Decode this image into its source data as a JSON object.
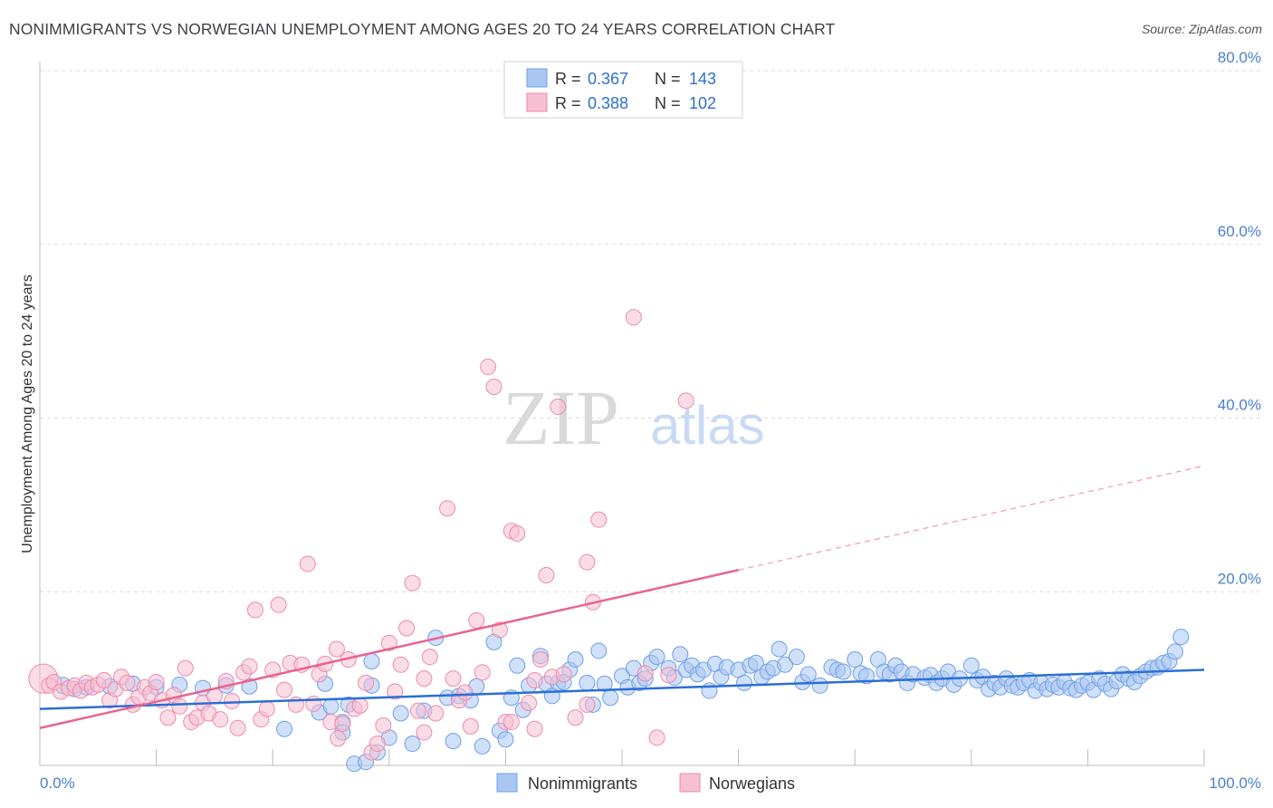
{
  "title": "NONIMMIGRANTS VS NORWEGIAN UNEMPLOYMENT AMONG AGES 20 TO 24 YEARS CORRELATION CHART",
  "source": "Source: ZipAtlas.com",
  "watermark": {
    "zip": "ZIP",
    "atlas": "atlas"
  },
  "legend_stats": [
    {
      "r_label": "R =",
      "r_value": "0.367",
      "n_label": "N =",
      "n_value": "143"
    },
    {
      "r_label": "R =",
      "r_value": "0.388",
      "n_label": "N =",
      "n_value": "102"
    }
  ],
  "chart_data": {
    "type": "scatter",
    "title": "NONIMMIGRANTS VS NORWEGIAN UNEMPLOYMENT AMONG AGES 20 TO 24 YEARS CORRELATION CHART",
    "xlabel": "",
    "ylabel": "Unemployment Among Ages 20 to 24 years",
    "xlim": [
      0,
      100
    ],
    "ylim": [
      0,
      80
    ],
    "x_tick_labels": [
      "0.0%",
      "100.0%"
    ],
    "y_tick_values": [
      20,
      40,
      60,
      80
    ],
    "y_tick_labels": [
      "20.0%",
      "40.0%",
      "60.0%",
      "80.0%"
    ],
    "grid": true,
    "legend_position": "bottom",
    "series": [
      {
        "name": "Nonimmigrants",
        "color": "#6fa0e8",
        "fill": "#a9c6f2",
        "r": 0.367,
        "n": 143,
        "trend": {
          "x0": 0,
          "y0": 6.5,
          "x1": 100,
          "y1": 11.0
        },
        "points": [
          [
            2,
            9.2
          ],
          [
            3,
            8.8
          ],
          [
            4,
            9.0
          ],
          [
            6,
            9.1
          ],
          [
            8,
            9.4
          ],
          [
            10,
            9.0
          ],
          [
            12,
            9.3
          ],
          [
            14,
            8.9
          ],
          [
            16,
            9.2
          ],
          [
            18,
            9.1
          ],
          [
            21,
            4.2
          ],
          [
            24,
            6.1
          ],
          [
            24.5,
            9.4
          ],
          [
            25,
            6.8
          ],
          [
            26,
            5.0
          ],
          [
            26,
            3.8
          ],
          [
            27,
            0.2
          ],
          [
            28,
            0.4
          ],
          [
            28.5,
            12.0
          ],
          [
            28.5,
            9.2
          ],
          [
            29,
            1.5
          ],
          [
            30,
            3.2
          ],
          [
            31,
            6.0
          ],
          [
            32,
            2.5
          ],
          [
            33,
            6.3
          ],
          [
            34,
            14.7
          ],
          [
            35,
            7.8
          ],
          [
            35.5,
            2.8
          ],
          [
            36,
            8.0
          ],
          [
            37,
            7.5
          ],
          [
            37.5,
            9.1
          ],
          [
            38,
            2.2
          ],
          [
            39,
            14.2
          ],
          [
            39.5,
            4.0
          ],
          [
            40,
            3.0
          ],
          [
            40.5,
            7.8
          ],
          [
            41,
            11.5
          ],
          [
            41.5,
            6.4
          ],
          [
            42,
            9.2
          ],
          [
            43,
            12.6
          ],
          [
            43.5,
            9.4
          ],
          [
            44,
            8.0
          ],
          [
            44.5,
            9.5
          ],
          [
            45,
            9.6
          ],
          [
            45.5,
            11.0
          ],
          [
            46,
            12.2
          ],
          [
            47,
            9.5
          ],
          [
            47.5,
            7.0
          ],
          [
            48,
            13.2
          ],
          [
            48.5,
            9.4
          ],
          [
            49,
            7.8
          ],
          [
            50,
            10.3
          ],
          [
            50.5,
            9.0
          ],
          [
            51,
            11.2
          ],
          [
            51.5,
            9.5
          ],
          [
            52,
            10.0
          ],
          [
            52.5,
            11.8
          ],
          [
            53,
            12.5
          ],
          [
            54,
            11.2
          ],
          [
            54.5,
            10.1
          ],
          [
            55,
            12.8
          ],
          [
            55.5,
            11.0
          ],
          [
            56,
            11.5
          ],
          [
            56.5,
            10.5
          ],
          [
            57,
            11.0
          ],
          [
            57.5,
            8.6
          ],
          [
            58,
            11.7
          ],
          [
            58.5,
            10.2
          ],
          [
            59,
            11.3
          ],
          [
            60,
            11.0
          ],
          [
            60.5,
            9.5
          ],
          [
            61,
            11.5
          ],
          [
            61.5,
            11.8
          ],
          [
            62,
            10.2
          ],
          [
            62.5,
            10.8
          ],
          [
            63,
            11.2
          ],
          [
            63.5,
            13.4
          ],
          [
            64,
            11.6
          ],
          [
            65,
            12.5
          ],
          [
            65.5,
            9.6
          ],
          [
            66,
            10.5
          ],
          [
            67,
            9.2
          ],
          [
            68,
            11.3
          ],
          [
            68.5,
            11.0
          ],
          [
            69,
            10.8
          ],
          [
            70,
            12.2
          ],
          [
            70.5,
            10.6
          ],
          [
            71,
            10.3
          ],
          [
            72,
            12.2
          ],
          [
            72.5,
            10.8
          ],
          [
            73,
            10.5
          ],
          [
            73.5,
            11.5
          ],
          [
            74,
            10.8
          ],
          [
            74.5,
            9.5
          ],
          [
            75,
            10.5
          ],
          [
            76,
            10.1
          ],
          [
            76.5,
            10.4
          ],
          [
            77,
            9.5
          ],
          [
            77.5,
            10.0
          ],
          [
            78,
            10.8
          ],
          [
            78.5,
            9.3
          ],
          [
            79,
            10.0
          ],
          [
            80,
            11.5
          ],
          [
            80.5,
            9.8
          ],
          [
            81,
            10.2
          ],
          [
            81.5,
            8.8
          ],
          [
            82,
            9.5
          ],
          [
            82.5,
            9.0
          ],
          [
            83,
            10.0
          ],
          [
            83.5,
            9.2
          ],
          [
            84,
            9.0
          ],
          [
            84.5,
            9.5
          ],
          [
            85,
            9.8
          ],
          [
            85.5,
            8.6
          ],
          [
            86,
            9.5
          ],
          [
            86.5,
            8.8
          ],
          [
            87,
            9.3
          ],
          [
            87.5,
            9.0
          ],
          [
            88,
            9.6
          ],
          [
            88.5,
            8.9
          ],
          [
            89,
            8.7
          ],
          [
            89.5,
            9.2
          ],
          [
            90,
            9.5
          ],
          [
            90.5,
            8.7
          ],
          [
            91,
            10.0
          ],
          [
            91.5,
            9.4
          ],
          [
            92,
            8.8
          ],
          [
            92.5,
            9.7
          ],
          [
            93,
            10.5
          ],
          [
            93.5,
            10.0
          ],
          [
            94,
            9.6
          ],
          [
            94.5,
            10.3
          ],
          [
            95,
            10.8
          ],
          [
            95.5,
            11.2
          ],
          [
            96,
            11.3
          ],
          [
            96.5,
            11.8
          ],
          [
            97,
            12.0
          ],
          [
            97.5,
            13.1
          ],
          [
            98,
            14.8
          ],
          [
            26.5,
            7.0
          ]
        ]
      },
      {
        "name": "Norwegians",
        "color": "#ee8aab",
        "fill": "#f6bfd2",
        "r": 0.388,
        "n": 102,
        "trend": {
          "x0": 0,
          "y0": 4.3,
          "x1": 60,
          "y1": 22.5
        },
        "trend_dashed": {
          "x0": 60,
          "y0": 22.5,
          "x1": 100,
          "y1": 34.5
        },
        "points": [
          [
            0.3,
            10.0
          ],
          [
            0.8,
            9.2
          ],
          [
            1.2,
            9.6
          ],
          [
            1.8,
            8.5
          ],
          [
            2.5,
            8.9
          ],
          [
            3,
            9.2
          ],
          [
            3.5,
            8.6
          ],
          [
            4,
            9.5
          ],
          [
            4.5,
            9.0
          ],
          [
            5,
            9.3
          ],
          [
            5.5,
            9.8
          ],
          [
            6,
            7.5
          ],
          [
            6.5,
            8.8
          ],
          [
            7,
            10.2
          ],
          [
            7.5,
            9.5
          ],
          [
            8,
            7.0
          ],
          [
            8.5,
            7.9
          ],
          [
            9,
            9.0
          ],
          [
            9.5,
            8.3
          ],
          [
            10,
            9.6
          ],
          [
            10.5,
            7.5
          ],
          [
            11,
            5.5
          ],
          [
            11.5,
            8.1
          ],
          [
            12,
            6.8
          ],
          [
            12.5,
            11.2
          ],
          [
            13,
            5.0
          ],
          [
            13.5,
            5.5
          ],
          [
            14,
            7.2
          ],
          [
            14.5,
            6.0
          ],
          [
            15,
            8.0
          ],
          [
            15.5,
            5.3
          ],
          [
            16,
            9.7
          ],
          [
            16.5,
            7.4
          ],
          [
            17,
            4.3
          ],
          [
            17.5,
            10.7
          ],
          [
            18,
            11.4
          ],
          [
            18.5,
            17.9
          ],
          [
            19,
            5.3
          ],
          [
            19.5,
            6.5
          ],
          [
            20,
            11.0
          ],
          [
            20.5,
            18.5
          ],
          [
            21,
            8.7
          ],
          [
            21.5,
            11.8
          ],
          [
            22,
            7.0
          ],
          [
            22.5,
            11.6
          ],
          [
            23,
            23.2
          ],
          [
            23.5,
            7.1
          ],
          [
            24,
            10.5
          ],
          [
            24.5,
            11.7
          ],
          [
            25,
            5.0
          ],
          [
            25.5,
            13.4
          ],
          [
            26,
            4.8
          ],
          [
            26.5,
            12.2
          ],
          [
            27,
            6.5
          ],
          [
            27.5,
            6.9
          ],
          [
            28,
            9.5
          ],
          [
            28.5,
            1.5
          ],
          [
            29,
            2.5
          ],
          [
            29.5,
            4.6
          ],
          [
            30,
            14.1
          ],
          [
            30.5,
            8.5
          ],
          [
            31,
            11.6
          ],
          [
            31.5,
            15.8
          ],
          [
            32,
            21.0
          ],
          [
            32.5,
            6.3
          ],
          [
            33,
            3.8
          ],
          [
            33.5,
            12.5
          ],
          [
            34,
            6.0
          ],
          [
            35,
            29.6
          ],
          [
            35.5,
            10.0
          ],
          [
            36,
            7.5
          ],
          [
            36.5,
            8.4
          ],
          [
            37,
            4.5
          ],
          [
            37.5,
            16.7
          ],
          [
            38,
            10.7
          ],
          [
            38.5,
            45.9
          ],
          [
            39,
            43.6
          ],
          [
            39.5,
            15.6
          ],
          [
            40,
            5.0
          ],
          [
            40.5,
            27.0
          ],
          [
            41,
            26.7
          ],
          [
            42,
            7.2
          ],
          [
            42.5,
            4.2
          ],
          [
            43,
            12.2
          ],
          [
            43.5,
            21.9
          ],
          [
            44,
            10.2
          ],
          [
            44.5,
            41.3
          ],
          [
            45,
            10.5
          ],
          [
            46,
            5.5
          ],
          [
            47,
            23.4
          ],
          [
            47.5,
            18.8
          ],
          [
            48,
            28.3
          ],
          [
            51,
            51.6
          ],
          [
            52,
            10.6
          ],
          [
            53,
            3.2
          ],
          [
            54,
            10.4
          ],
          [
            55.5,
            42.0
          ],
          [
            47,
            7.0
          ],
          [
            33,
            10.0
          ],
          [
            25.6,
            3.1
          ],
          [
            40.5,
            5.0
          ],
          [
            42.5,
            9.8
          ]
        ]
      }
    ]
  }
}
